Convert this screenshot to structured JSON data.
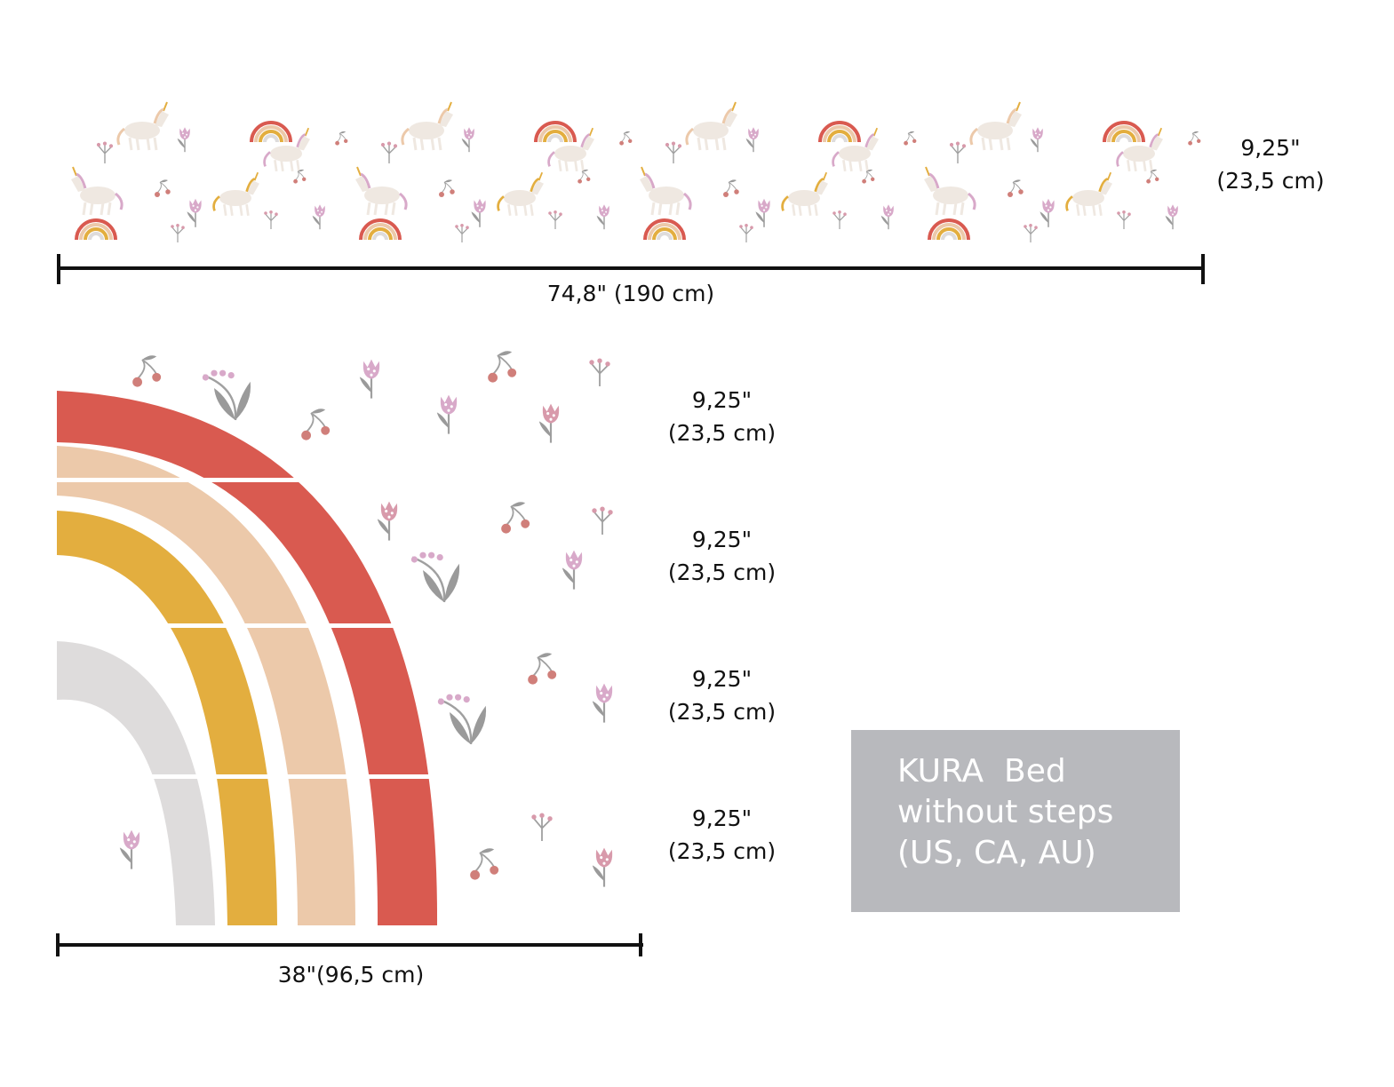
{
  "strip": {
    "width_label": "74,8\" (190 cm)",
    "height_label_line1": "9,25\"",
    "height_label_line2": "(23,5 cm)"
  },
  "rainbow": {
    "width_label": "38\"(96,5 cm)",
    "panels": [
      {
        "line1": "9,25\"",
        "line2": "(23,5 cm)"
      },
      {
        "line1": "9,25\"",
        "line2": "(23,5 cm)"
      },
      {
        "line1": "9,25\"",
        "line2": "(23,5 cm)"
      },
      {
        "line1": "9,25\"",
        "line2": "(23,5 cm)"
      }
    ],
    "colors": {
      "red": "#d95a50",
      "peach": "#ecc9aa",
      "mustard": "#e3ae3f",
      "grey": "#dedcdc",
      "pink": "#d89aab",
      "lilac": "#d8a9c9",
      "stem": "#a0a0a0"
    }
  },
  "info_box": {
    "line1": "KURA  Bed",
    "line2": "without steps",
    "line3": "(US, CA, AU)"
  }
}
